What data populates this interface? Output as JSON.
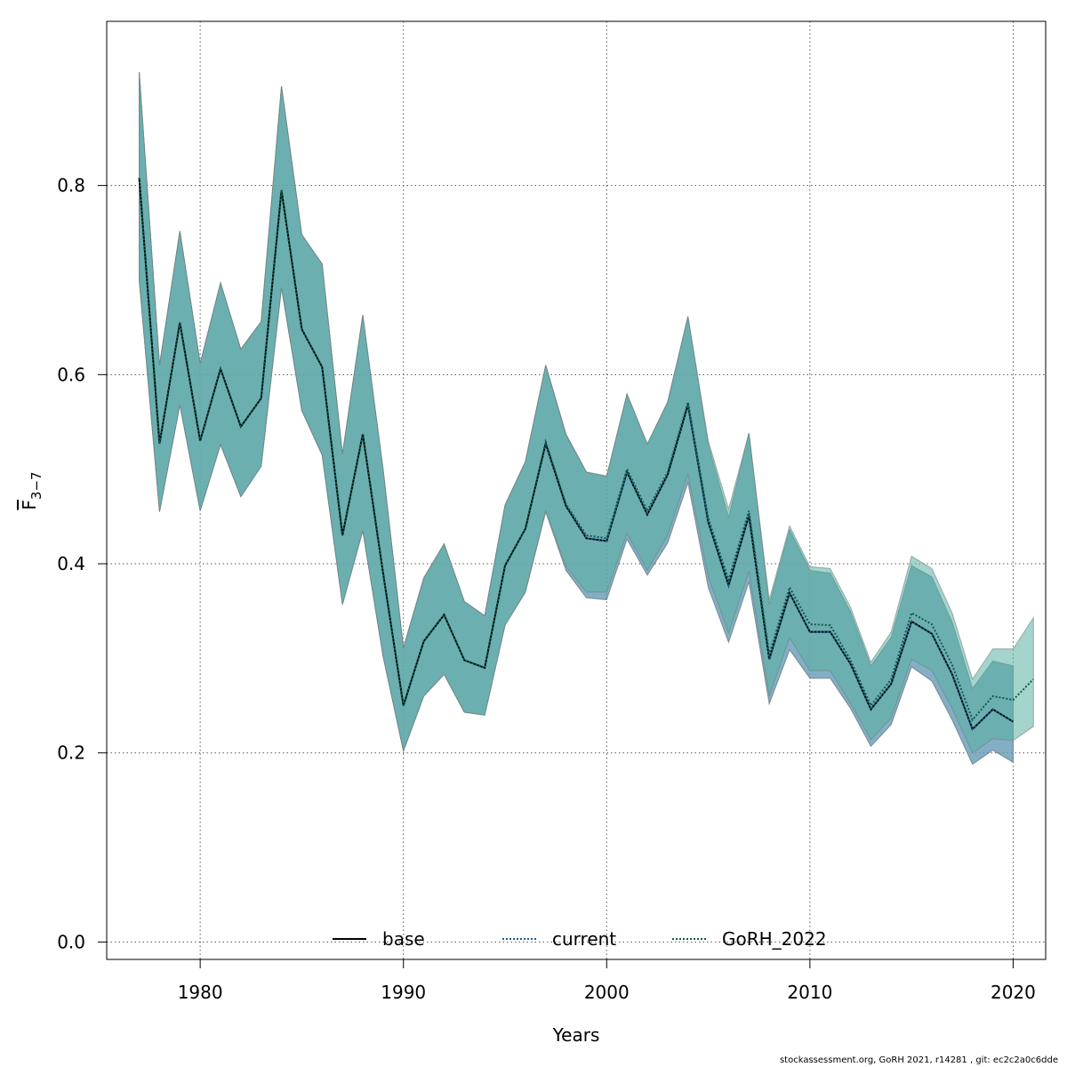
{
  "chart_data": {
    "type": "line",
    "xlabel": "Years",
    "ylabel": "F",
    "ylabel_sub": "3−7",
    "xlim": [
      1975.4,
      2021.6
    ],
    "ylim": [
      -0.0184,
      0.9736
    ],
    "xticks": [
      1980,
      1990,
      2000,
      2010,
      2020
    ],
    "yticks": [
      0.0,
      0.2,
      0.4,
      0.6,
      0.8
    ],
    "ytick_labels": [
      "0.0",
      "0.2",
      "0.4",
      "0.6",
      "0.8"
    ],
    "grid": true,
    "legend_position": "bottom",
    "legend": [
      {
        "label": "base",
        "color": "#000000",
        "style": "solid"
      },
      {
        "label": "current",
        "color": "#1f5a8a",
        "style": "dotted"
      },
      {
        "label": "GoRH_2022",
        "color": "#0f5a4a",
        "style": "dotted"
      }
    ],
    "x": [
      1977,
      1978,
      1979,
      1980,
      1981,
      1982,
      1983,
      1984,
      1985,
      1986,
      1987,
      1988,
      1989,
      1990,
      1991,
      1992,
      1993,
      1994,
      1995,
      1996,
      1997,
      1998,
      1999,
      2000,
      2001,
      2002,
      2003,
      2004,
      2005,
      2006,
      2007,
      2008,
      2009,
      2010,
      2011,
      2012,
      2013,
      2014,
      2015,
      2016,
      2017,
      2018,
      2019,
      2020,
      2021
    ],
    "series": [
      {
        "name": "base",
        "color": "#000000",
        "band_color": "#4a8fa5",
        "x": [
          1977,
          1978,
          1979,
          1980,
          1981,
          1982,
          1983,
          1984,
          1985,
          1986,
          1987,
          1988,
          1989,
          1990,
          1991,
          1992,
          1993,
          1994,
          1995,
          1996,
          1997,
          1998,
          1999,
          2000,
          2001,
          2002,
          2003,
          2004,
          2005,
          2006,
          2007,
          2008,
          2009,
          2010,
          2011,
          2012,
          2013,
          2014,
          2015,
          2016,
          2017,
          2018,
          2019,
          2020
        ],
        "values": [
          0.808,
          0.527,
          0.655,
          0.53,
          0.606,
          0.545,
          0.575,
          0.795,
          0.648,
          0.608,
          0.43,
          0.537,
          0.39,
          0.25,
          0.318,
          0.346,
          0.298,
          0.29,
          0.398,
          0.437,
          0.527,
          0.461,
          0.427,
          0.424,
          0.497,
          0.452,
          0.494,
          0.568,
          0.444,
          0.377,
          0.451,
          0.299,
          0.369,
          0.328,
          0.328,
          0.294,
          0.246,
          0.273,
          0.339,
          0.326,
          0.283,
          0.225,
          0.246,
          0.233
        ],
        "lower": [
          0.7,
          0.455,
          0.568,
          0.456,
          0.526,
          0.471,
          0.503,
          0.692,
          0.562,
          0.515,
          0.357,
          0.435,
          0.302,
          0.202,
          0.26,
          0.283,
          0.243,
          0.24,
          0.335,
          0.37,
          0.455,
          0.393,
          0.364,
          0.362,
          0.426,
          0.388,
          0.422,
          0.486,
          0.375,
          0.317,
          0.381,
          0.252,
          0.309,
          0.279,
          0.279,
          0.247,
          0.207,
          0.23,
          0.291,
          0.276,
          0.235,
          0.188,
          0.203,
          0.19
        ],
        "upper": [
          0.92,
          0.61,
          0.752,
          0.612,
          0.697,
          0.627,
          0.656,
          0.905,
          0.748,
          0.717,
          0.516,
          0.663,
          0.5,
          0.311,
          0.385,
          0.421,
          0.36,
          0.345,
          0.462,
          0.508,
          0.61,
          0.537,
          0.497,
          0.492,
          0.579,
          0.526,
          0.571,
          0.661,
          0.526,
          0.449,
          0.538,
          0.357,
          0.436,
          0.393,
          0.39,
          0.349,
          0.292,
          0.322,
          0.398,
          0.386,
          0.338,
          0.268,
          0.297,
          0.292
        ]
      },
      {
        "name": "current",
        "color": "#1f5a8a",
        "band_color": "#6f9fc0",
        "x": [
          1977,
          1978,
          1979,
          1980,
          1981,
          1982,
          1983,
          1984,
          1985,
          1986,
          1987,
          1988,
          1989,
          1990,
          1991,
          1992,
          1993,
          1994,
          1995,
          1996,
          1997,
          1998,
          1999,
          2000,
          2001,
          2002,
          2003,
          2004,
          2005,
          2006,
          2007,
          2008,
          2009,
          2010,
          2011,
          2012,
          2013,
          2014,
          2015,
          2016,
          2017,
          2018,
          2019,
          2020
        ],
        "values": [
          0.808,
          0.527,
          0.655,
          0.53,
          0.606,
          0.545,
          0.575,
          0.795,
          0.648,
          0.608,
          0.43,
          0.537,
          0.39,
          0.25,
          0.318,
          0.346,
          0.298,
          0.29,
          0.398,
          0.437,
          0.527,
          0.461,
          0.427,
          0.424,
          0.497,
          0.452,
          0.494,
          0.568,
          0.444,
          0.377,
          0.451,
          0.299,
          0.369,
          0.328,
          0.328,
          0.294,
          0.246,
          0.273,
          0.339,
          0.326,
          0.283,
          0.225,
          0.246,
          0.233
        ],
        "lower": [
          0.7,
          0.455,
          0.568,
          0.456,
          0.526,
          0.471,
          0.503,
          0.692,
          0.562,
          0.515,
          0.357,
          0.435,
          0.302,
          0.202,
          0.26,
          0.283,
          0.243,
          0.24,
          0.335,
          0.37,
          0.455,
          0.393,
          0.364,
          0.362,
          0.426,
          0.388,
          0.422,
          0.486,
          0.375,
          0.317,
          0.381,
          0.252,
          0.309,
          0.279,
          0.279,
          0.247,
          0.207,
          0.23,
          0.291,
          0.276,
          0.235,
          0.188,
          0.203,
          0.19
        ],
        "upper": [
          0.92,
          0.61,
          0.752,
          0.612,
          0.697,
          0.627,
          0.656,
          0.905,
          0.748,
          0.717,
          0.516,
          0.663,
          0.5,
          0.311,
          0.385,
          0.421,
          0.36,
          0.345,
          0.462,
          0.508,
          0.61,
          0.537,
          0.497,
          0.492,
          0.579,
          0.526,
          0.571,
          0.661,
          0.526,
          0.449,
          0.538,
          0.357,
          0.436,
          0.393,
          0.39,
          0.349,
          0.292,
          0.322,
          0.398,
          0.386,
          0.338,
          0.268,
          0.297,
          0.292
        ]
      },
      {
        "name": "GoRH_2022",
        "color": "#0f5a4a",
        "band_color": "#5ab0a0",
        "x": [
          1977,
          1978,
          1979,
          1980,
          1981,
          1982,
          1983,
          1984,
          1985,
          1986,
          1987,
          1988,
          1989,
          1990,
          1991,
          1992,
          1993,
          1994,
          1995,
          1996,
          1997,
          1998,
          1999,
          2000,
          2001,
          2002,
          2003,
          2004,
          2005,
          2006,
          2007,
          2008,
          2009,
          2010,
          2011,
          2012,
          2013,
          2014,
          2015,
          2016,
          2017,
          2018,
          2019,
          2020,
          2021
        ],
        "values": [
          0.808,
          0.527,
          0.655,
          0.53,
          0.606,
          0.545,
          0.575,
          0.795,
          0.648,
          0.608,
          0.43,
          0.537,
          0.39,
          0.25,
          0.318,
          0.346,
          0.298,
          0.29,
          0.398,
          0.437,
          0.529,
          0.463,
          0.43,
          0.427,
          0.5,
          0.456,
          0.497,
          0.571,
          0.448,
          0.383,
          0.456,
          0.304,
          0.375,
          0.336,
          0.335,
          0.298,
          0.25,
          0.278,
          0.348,
          0.336,
          0.293,
          0.235,
          0.26,
          0.256,
          0.278
        ],
        "lower": [
          0.7,
          0.455,
          0.568,
          0.456,
          0.526,
          0.471,
          0.503,
          0.692,
          0.562,
          0.515,
          0.357,
          0.435,
          0.302,
          0.202,
          0.26,
          0.283,
          0.243,
          0.24,
          0.335,
          0.37,
          0.456,
          0.397,
          0.37,
          0.37,
          0.432,
          0.393,
          0.43,
          0.495,
          0.386,
          0.327,
          0.392,
          0.26,
          0.322,
          0.287,
          0.287,
          0.252,
          0.214,
          0.237,
          0.299,
          0.287,
          0.247,
          0.2,
          0.215,
          0.213,
          0.228
        ],
        "upper": [
          0.92,
          0.61,
          0.752,
          0.612,
          0.697,
          0.627,
          0.656,
          0.905,
          0.748,
          0.717,
          0.516,
          0.663,
          0.5,
          0.311,
          0.385,
          0.421,
          0.36,
          0.345,
          0.462,
          0.508,
          0.61,
          0.536,
          0.497,
          0.493,
          0.58,
          0.527,
          0.571,
          0.662,
          0.53,
          0.458,
          0.538,
          0.362,
          0.44,
          0.397,
          0.395,
          0.354,
          0.296,
          0.328,
          0.408,
          0.395,
          0.348,
          0.278,
          0.31,
          0.31,
          0.343
        ]
      }
    ]
  },
  "footer": "stockassessment.org, GoRH  2021, r14281 , git: ec2c2a0c6dde"
}
